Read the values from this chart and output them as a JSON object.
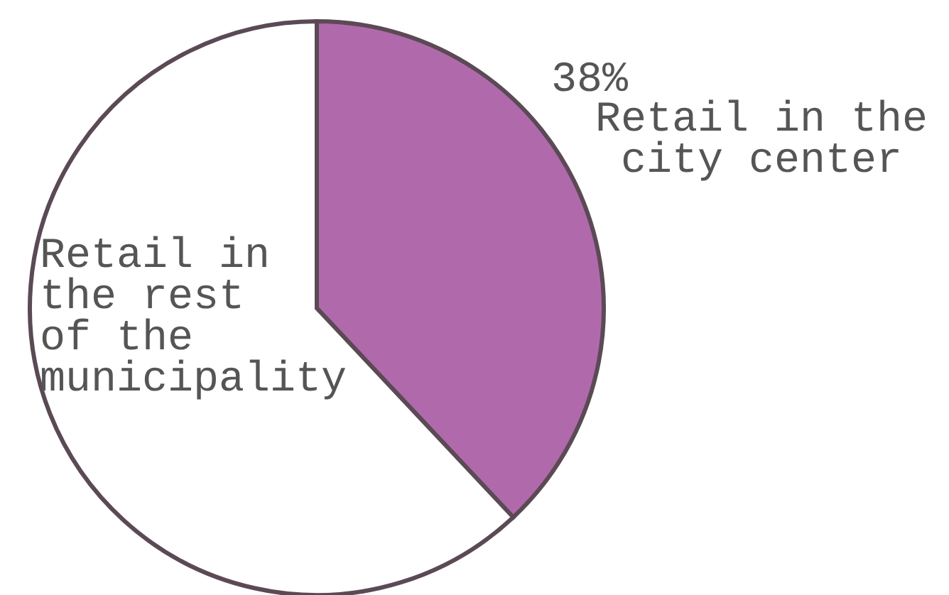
{
  "chart_data": {
    "type": "pie",
    "categories": [
      "Retail in the city center",
      "Retail in the rest of the municipality"
    ],
    "values": [
      38,
      62
    ],
    "colors": [
      "#b06aab",
      "#ffffff"
    ],
    "value_labels": [
      "38%",
      null
    ],
    "legend": false
  }
}
